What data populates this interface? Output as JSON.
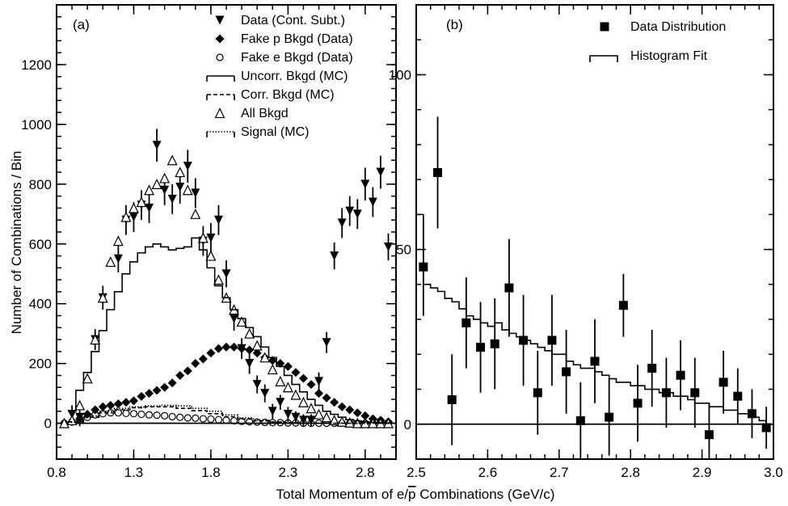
{
  "axis_labels": {
    "ylabel": "Number of Combinations / Bin",
    "xlabel_prefix": "Total Momentum of e/",
    "xlabel_pbar": "p",
    "xlabel_suffix": " Combinations (GeV/c)"
  },
  "chart_data": [
    {
      "panel": "(a)",
      "type": "scatter",
      "xlim": [
        0.8,
        3.0
      ],
      "ylim": [
        -120,
        1400
      ],
      "xticks": [
        "0.8",
        "1.3",
        "1.8",
        "2.3",
        "2.8"
      ],
      "yticks": [
        "0",
        "200",
        "400",
        "600",
        "800",
        "1000",
        "1200"
      ],
      "legend_placement": "top-right",
      "legend": [
        "Data (Cont. Subt.)",
        "Fake p Bkgd (Data)",
        "Fake e Bkgd (Data)",
        "Uncorr. Bkgd (MC)",
        "Corr. Bkgd (MC)",
        "All Bkgd",
        "Signal (MC)"
      ],
      "series": [
        {
          "name": "Data (Cont. Subt.)",
          "marker": "triangle-down",
          "x": [
            0.9,
            0.95,
            1.05,
            1.1,
            1.2,
            1.25,
            1.3,
            1.35,
            1.4,
            1.45,
            1.5,
            1.55,
            1.6,
            1.65,
            1.7,
            1.75,
            1.8,
            1.85,
            1.9,
            1.95,
            2.0,
            2.05,
            2.1,
            2.15,
            2.2,
            2.25,
            2.3,
            2.35,
            2.4,
            2.45,
            2.5,
            2.55,
            2.6,
            2.65,
            2.7,
            2.75,
            2.8,
            2.85,
            2.9,
            2.95
          ],
          "y": [
            30,
            20,
            280,
            420,
            550,
            680,
            690,
            730,
            720,
            930,
            780,
            750,
            790,
            860,
            770,
            610,
            620,
            680,
            500,
            350,
            250,
            200,
            130,
            100,
            40,
            70,
            30,
            20,
            10,
            10,
            140,
            270,
            560,
            670,
            710,
            700,
            800,
            740,
            840,
            590
          ],
          "err": [
            30,
            30,
            35,
            40,
            45,
            50,
            50,
            50,
            50,
            55,
            50,
            50,
            55,
            55,
            50,
            50,
            50,
            50,
            45,
            40,
            35,
            35,
            30,
            30,
            25,
            25,
            25,
            20,
            20,
            20,
            30,
            35,
            45,
            50,
            50,
            50,
            55,
            50,
            55,
            45
          ]
        },
        {
          "name": "Fake p Bkgd (Data)",
          "marker": "diamond",
          "x": [
            0.85,
            0.9,
            0.95,
            1.0,
            1.05,
            1.1,
            1.15,
            1.2,
            1.25,
            1.3,
            1.35,
            1.4,
            1.45,
            1.5,
            1.55,
            1.6,
            1.65,
            1.7,
            1.75,
            1.8,
            1.85,
            1.9,
            1.95,
            2.0,
            2.05,
            2.1,
            2.15,
            2.2,
            2.25,
            2.3,
            2.35,
            2.4,
            2.45,
            2.5,
            2.55,
            2.6,
            2.65,
            2.7,
            2.75,
            2.8,
            2.85,
            2.9,
            2.95
          ],
          "y": [
            0,
            5,
            15,
            30,
            45,
            55,
            60,
            65,
            70,
            75,
            90,
            100,
            110,
            120,
            135,
            160,
            175,
            200,
            215,
            235,
            250,
            255,
            255,
            250,
            245,
            235,
            220,
            210,
            200,
            190,
            170,
            150,
            130,
            100,
            85,
            70,
            55,
            45,
            35,
            25,
            15,
            10,
            5
          ],
          "err": []
        },
        {
          "name": "Fake e Bkgd (Data)",
          "marker": "open-circle",
          "x": [
            0.85,
            0.9,
            0.95,
            1.0,
            1.05,
            1.1,
            1.15,
            1.2,
            1.25,
            1.3,
            1.35,
            1.4,
            1.45,
            1.5,
            1.55,
            1.6,
            1.65,
            1.7,
            1.75,
            1.8,
            1.85,
            1.9,
            1.95,
            2.0,
            2.05,
            2.1,
            2.15,
            2.2,
            2.25,
            2.3,
            2.35,
            2.4,
            2.45,
            2.5,
            2.55,
            2.6,
            2.65,
            2.7,
            2.75,
            2.8,
            2.85,
            2.9,
            2.95
          ],
          "y": [
            0,
            5,
            10,
            20,
            28,
            32,
            35,
            35,
            33,
            32,
            30,
            28,
            27,
            25,
            22,
            20,
            18,
            17,
            15,
            14,
            12,
            10,
            8,
            6,
            5,
            4,
            3,
            2,
            2,
            1,
            1,
            0,
            0,
            0,
            0,
            0,
            0,
            0,
            0,
            0,
            0,
            0,
            0
          ],
          "err": []
        },
        {
          "name": "All Bkgd",
          "marker": "open-triangle-up",
          "x": [
            0.85,
            0.9,
            0.95,
            1.0,
            1.05,
            1.1,
            1.15,
            1.2,
            1.25,
            1.3,
            1.35,
            1.4,
            1.45,
            1.5,
            1.55,
            1.6,
            1.65,
            1.7,
            1.75,
            1.8,
            1.85,
            1.9,
            1.95,
            2.0,
            2.05,
            2.1,
            2.15,
            2.2,
            2.25,
            2.3,
            2.35,
            2.4,
            2.45,
            2.5,
            2.55,
            2.6,
            2.65,
            2.7,
            2.75,
            2.8,
            2.85,
            2.9,
            2.95
          ],
          "y": [
            0,
            10,
            60,
            150,
            280,
            420,
            540,
            610,
            690,
            720,
            740,
            780,
            800,
            820,
            880,
            840,
            780,
            700,
            620,
            560,
            480,
            420,
            380,
            340,
            300,
            260,
            220,
            180,
            140,
            120,
            95,
            70,
            50,
            30,
            20,
            10,
            5,
            2,
            0,
            0,
            0,
            0,
            0
          ],
          "err": []
        },
        {
          "name": "Uncorr. Bkgd (MC)",
          "type": "step",
          "line": "solid",
          "edges": [
            0.875,
            0.925,
            0.975,
            1.025,
            1.075,
            1.125,
            1.175,
            1.225,
            1.275,
            1.325,
            1.375,
            1.425,
            1.475,
            1.525,
            1.575,
            1.625,
            1.675,
            1.725,
            1.775,
            1.825,
            1.875,
            1.925,
            1.975,
            2.025,
            2.075,
            2.125,
            2.175,
            2.225,
            2.275,
            2.325,
            2.375,
            2.425,
            2.475,
            2.525,
            2.575,
            2.625,
            2.675,
            2.725,
            2.775,
            2.825,
            2.875,
            2.925,
            2.975
          ],
          "values": [
            40,
            110,
            170,
            240,
            310,
            380,
            440,
            500,
            540,
            570,
            590,
            600,
            590,
            580,
            585,
            590,
            620,
            580,
            520,
            460,
            420,
            380,
            350,
            320,
            290,
            255,
            220,
            190,
            160,
            130,
            105,
            80,
            60,
            40,
            30,
            20,
            12,
            8,
            5,
            3,
            2,
            1
          ]
        },
        {
          "name": "Corr. Bkgd (MC)",
          "type": "step",
          "line": "dashed",
          "edges": [
            0.875,
            0.975,
            1.075,
            1.175,
            1.275,
            1.375,
            1.475,
            1.575,
            1.675,
            1.775,
            1.875,
            1.975,
            2.075,
            2.175,
            2.275,
            2.375,
            2.475,
            2.575,
            2.675,
            2.775,
            2.875,
            2.975
          ],
          "values": [
            5,
            20,
            35,
            45,
            52,
            55,
            55,
            50,
            42,
            32,
            22,
            14,
            8,
            4,
            2,
            1,
            0,
            0,
            0,
            0,
            0
          ]
        },
        {
          "name": "Signal (MC)",
          "type": "step",
          "line": "dotted",
          "edges": [
            0.875,
            0.975,
            1.075,
            1.175,
            1.275,
            1.375,
            1.475,
            1.575,
            1.675,
            1.775,
            1.875,
            1.975,
            2.075,
            2.175,
            2.275,
            2.375,
            2.475,
            2.575,
            2.675,
            2.775,
            2.875,
            2.975
          ],
          "values": [
            3,
            25,
            40,
            50,
            55,
            58,
            60,
            58,
            50,
            40,
            28,
            18,
            10,
            5,
            3,
            1,
            0,
            0,
            0,
            0,
            0
          ]
        }
      ]
    },
    {
      "panel": "(b)",
      "type": "scatter",
      "xlim": [
        2.5,
        3.0
      ],
      "ylim": [
        -10,
        120
      ],
      "xticks": [
        "2.5",
        "2.6",
        "2.7",
        "2.8",
        "2.9",
        "3.0"
      ],
      "yticks": [
        "0",
        "50",
        "100"
      ],
      "legend_placement": "top-right",
      "legend": [
        "Data Distribution",
        "Histogram Fit"
      ],
      "series": [
        {
          "name": "Data Distribution",
          "marker": "square",
          "x": [
            2.51,
            2.53,
            2.55,
            2.57,
            2.59,
            2.61,
            2.63,
            2.65,
            2.67,
            2.69,
            2.71,
            2.73,
            2.75,
            2.77,
            2.79,
            2.81,
            2.83,
            2.85,
            2.87,
            2.89,
            2.91,
            2.93,
            2.95,
            2.97,
            2.99
          ],
          "y": [
            45,
            72,
            7,
            29,
            22,
            23,
            39,
            24,
            9,
            24,
            15,
            1,
            18,
            2,
            34,
            6,
            16,
            9,
            14,
            9,
            -3,
            12,
            8,
            3,
            -1
          ],
          "err": [
            14,
            16,
            13,
            13,
            13,
            13,
            14,
            13,
            12,
            13,
            12,
            11,
            12,
            11,
            9,
            11,
            11,
            10,
            10,
            10,
            9,
            9,
            8,
            7,
            6
          ]
        },
        {
          "name": "Histogram Fit",
          "type": "step",
          "line": "solid",
          "edges": [
            2.5,
            2.51,
            2.52,
            2.53,
            2.54,
            2.55,
            2.56,
            2.57,
            2.58,
            2.59,
            2.6,
            2.61,
            2.62,
            2.63,
            2.64,
            2.65,
            2.66,
            2.67,
            2.68,
            2.69,
            2.7,
            2.71,
            2.72,
            2.73,
            2.74,
            2.75,
            2.76,
            2.77,
            2.78,
            2.79,
            2.8,
            2.81,
            2.82,
            2.83,
            2.84,
            2.85,
            2.86,
            2.87,
            2.88,
            2.89,
            2.9,
            2.91,
            2.92,
            2.93,
            2.94,
            2.95,
            2.96,
            2.97,
            2.98,
            2.99,
            3.0
          ],
          "values": [
            60,
            40,
            39,
            38,
            36,
            35,
            33,
            31,
            30,
            29,
            28,
            29,
            27,
            26,
            25,
            24,
            23,
            22,
            21,
            20,
            20,
            18,
            17,
            16,
            16,
            15,
            14,
            13,
            12,
            12,
            11,
            11,
            10,
            10,
            9,
            9,
            8,
            8,
            7,
            6,
            6,
            5,
            5,
            4,
            4,
            3,
            3,
            2,
            1,
            0
          ]
        }
      ]
    }
  ]
}
